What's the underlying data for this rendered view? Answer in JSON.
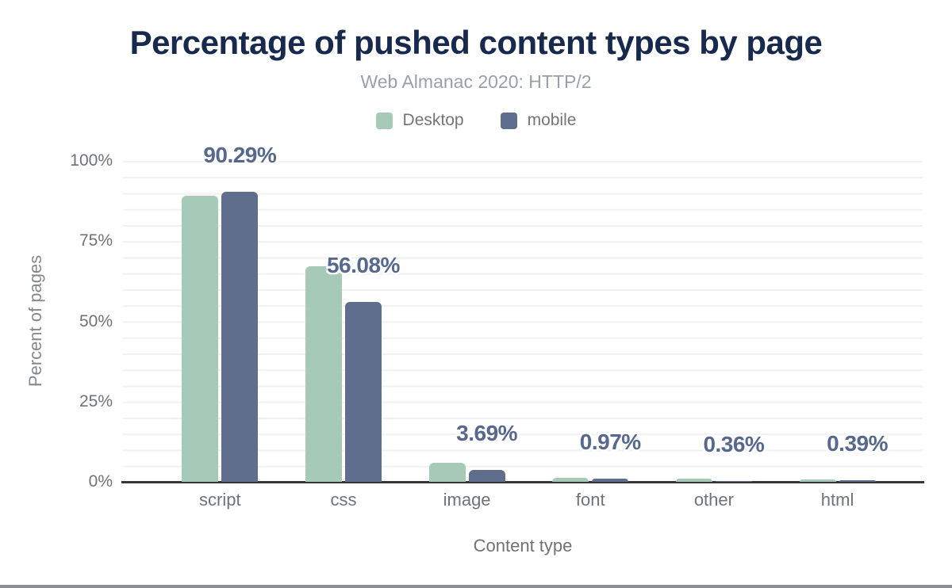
{
  "chart_data": {
    "type": "bar",
    "title": "Percentage of pushed content types by page",
    "subtitle": "Web Almanac 2020: HTTP/2",
    "xlabel": "Content type",
    "ylabel": "Percent of pages",
    "categories": [
      "script",
      "css",
      "image",
      "font",
      "other",
      "html"
    ],
    "series": [
      {
        "name": "Desktop",
        "color": "#a6cab7",
        "values": [
          89.2,
          67.2,
          5.9,
          1.3,
          0.9,
          0.85
        ]
      },
      {
        "name": "mobile",
        "color": "#5e6e8c",
        "values": [
          90.29,
          56.08,
          3.69,
          0.97,
          0.36,
          0.39
        ]
      }
    ],
    "data_labels": [
      "90.29%",
      "56.08%",
      "3.69%",
      "0.97%",
      "0.36%",
      "0.39%"
    ],
    "data_labels_series": "mobile",
    "yticks": [
      "0%",
      "25%",
      "50%",
      "75%",
      "100%"
    ],
    "ylim": [
      0,
      100
    ],
    "grid": "horizontal minor lines every 5%",
    "legend_position": "top-center"
  },
  "colors": {
    "desktop_bar": "#a6cab7",
    "mobile_bar": "#5e6e8c",
    "title_text": "#17294d",
    "data_label_text": "#56688e",
    "axis_text": "#6f7276",
    "subtitle_text": "#9aa0a3",
    "gridline": "#f0f1f2",
    "axis_line": "#35353b",
    "footer_bar": "#8a8d93"
  }
}
